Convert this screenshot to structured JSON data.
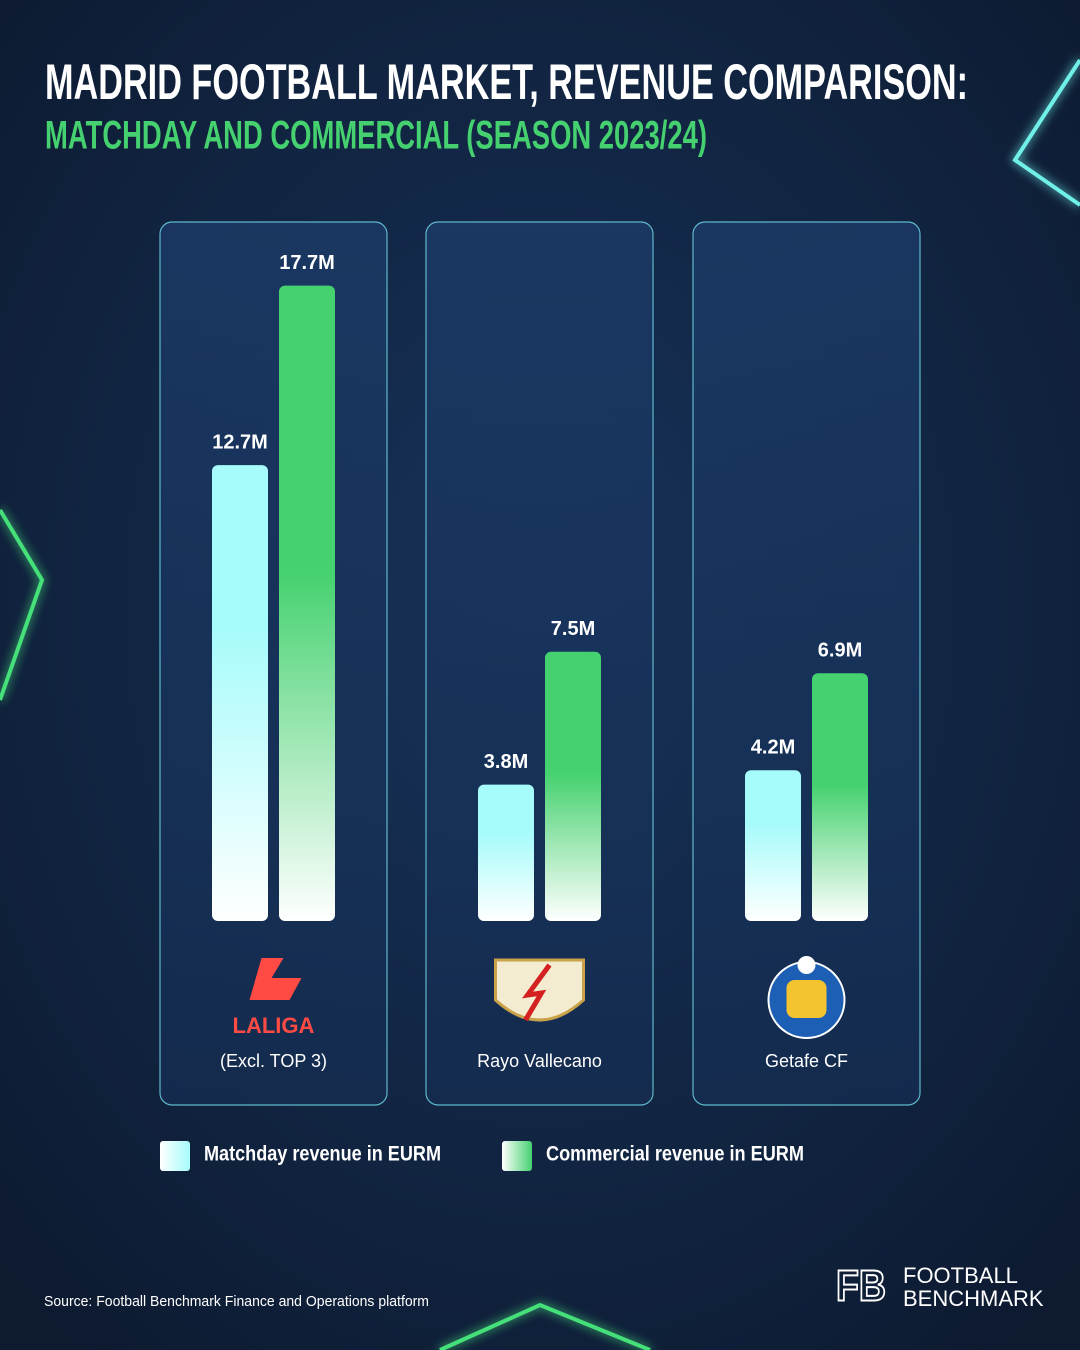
{
  "title": "MADRID FOOTBALL MARKET, REVENUE COMPARISON:",
  "subtitle": "MATCHDAY AND COMMERCIAL (SEASON 2023/24)",
  "chart_data": {
    "type": "bar",
    "categories": [
      "(Excl. TOP 3)",
      "Rayo Vallecano",
      "Getafe CF"
    ],
    "category_logos": [
      "LALIGA",
      null,
      null
    ],
    "series": [
      {
        "name": "Matchday revenue in EURM",
        "color": "#a6fbfb",
        "values": [
          12.7,
          3.8,
          4.2
        ],
        "value_labels": [
          "12.7M",
          "3.8M",
          "4.2M"
        ]
      },
      {
        "name": "Commercial revenue in EURM",
        "color": "#45d16f",
        "values": [
          17.7,
          7.5,
          6.9
        ],
        "value_labels": [
          "17.7M",
          "7.5M",
          "6.9M"
        ]
      }
    ],
    "ylim": [
      0,
      20
    ]
  },
  "source": "Source: Football Benchmark Finance and Operations platform",
  "brand": {
    "mark": "FB",
    "lines": [
      "FOOTBALL",
      "BENCHMARK"
    ]
  }
}
